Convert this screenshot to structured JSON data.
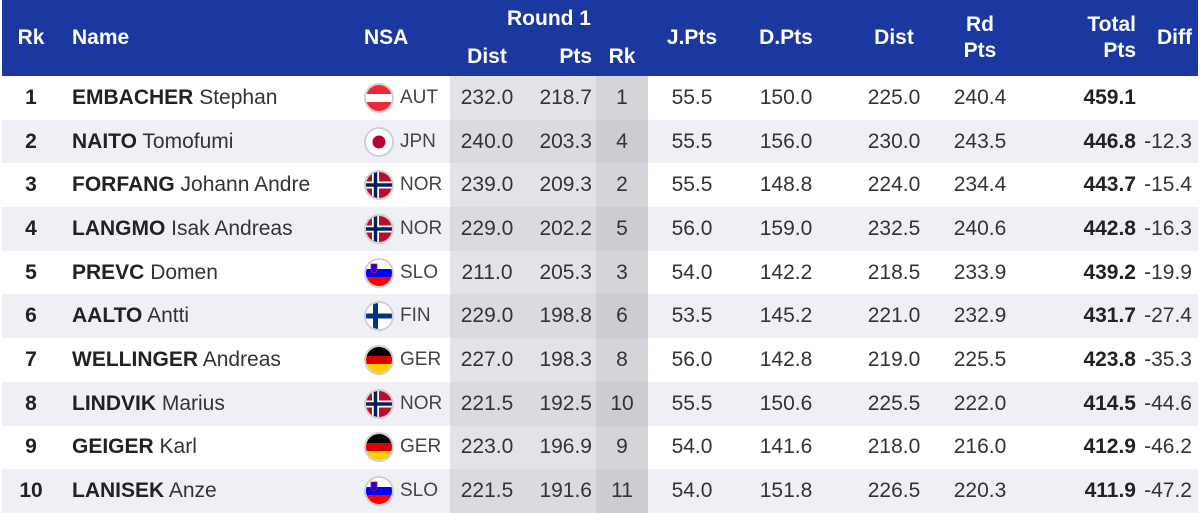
{
  "headers": {
    "rk": "Rk",
    "name": "Name",
    "nsa": "NSA",
    "round1": "Round 1",
    "r1_dist": "Dist",
    "r1_pts": "Pts",
    "r1_rk": "Rk",
    "jpts": "J.Pts",
    "dpts": "D.Pts",
    "dist": "Dist",
    "rdpts_1": "Rd",
    "rdpts_2": "Pts",
    "total_1": "Total",
    "total_2": "Pts",
    "diff": "Diff"
  },
  "rows": [
    {
      "rk": "1",
      "surname": "EMBACHER",
      "firstname": "Stephan",
      "flag": "aut-flag-icon",
      "nsa": "AUT",
      "r1_dist": "232.0",
      "r1_pts": "218.7",
      "r1_rk": "1",
      "jpts": "55.5",
      "dpts": "150.0",
      "dist": "225.0",
      "rdpts": "240.4",
      "total": "459.1",
      "diff": ""
    },
    {
      "rk": "2",
      "surname": "NAITO",
      "firstname": "Tomofumi",
      "flag": "jpn-flag-icon",
      "nsa": "JPN",
      "r1_dist": "240.0",
      "r1_pts": "203.3",
      "r1_rk": "4",
      "jpts": "55.5",
      "dpts": "156.0",
      "dist": "230.0",
      "rdpts": "243.5",
      "total": "446.8",
      "diff": "-12.3"
    },
    {
      "rk": "3",
      "surname": "FORFANG",
      "firstname": "Johann Andre",
      "flag": "nor-flag-icon",
      "nsa": "NOR",
      "r1_dist": "239.0",
      "r1_pts": "209.3",
      "r1_rk": "2",
      "jpts": "55.5",
      "dpts": "148.8",
      "dist": "224.0",
      "rdpts": "234.4",
      "total": "443.7",
      "diff": "-15.4"
    },
    {
      "rk": "4",
      "surname": "LANGMO",
      "firstname": "Isak Andreas",
      "flag": "nor-flag-icon",
      "nsa": "NOR",
      "r1_dist": "229.0",
      "r1_pts": "202.2",
      "r1_rk": "5",
      "jpts": "56.0",
      "dpts": "159.0",
      "dist": "232.5",
      "rdpts": "240.6",
      "total": "442.8",
      "diff": "-16.3"
    },
    {
      "rk": "5",
      "surname": "PREVC",
      "firstname": "Domen",
      "flag": "slo-flag-icon",
      "nsa": "SLO",
      "r1_dist": "211.0",
      "r1_pts": "205.3",
      "r1_rk": "3",
      "jpts": "54.0",
      "dpts": "142.2",
      "dist": "218.5",
      "rdpts": "233.9",
      "total": "439.2",
      "diff": "-19.9"
    },
    {
      "rk": "6",
      "surname": "AALTO",
      "firstname": "Antti",
      "flag": "fin-flag-icon",
      "nsa": "FIN",
      "r1_dist": "229.0",
      "r1_pts": "198.8",
      "r1_rk": "6",
      "jpts": "53.5",
      "dpts": "145.2",
      "dist": "221.0",
      "rdpts": "232.9",
      "total": "431.7",
      "diff": "-27.4"
    },
    {
      "rk": "7",
      "surname": "WELLINGER",
      "firstname": "Andreas",
      "flag": "ger-flag-icon",
      "nsa": "GER",
      "r1_dist": "227.0",
      "r1_pts": "198.3",
      "r1_rk": "8",
      "jpts": "56.0",
      "dpts": "142.8",
      "dist": "219.0",
      "rdpts": "225.5",
      "total": "423.8",
      "diff": "-35.3"
    },
    {
      "rk": "8",
      "surname": "LINDVIK",
      "firstname": "Marius",
      "flag": "nor-flag-icon",
      "nsa": "NOR",
      "r1_dist": "221.5",
      "r1_pts": "192.5",
      "r1_rk": "10",
      "jpts": "55.5",
      "dpts": "150.6",
      "dist": "225.5",
      "rdpts": "222.0",
      "total": "414.5",
      "diff": "-44.6"
    },
    {
      "rk": "9",
      "surname": "GEIGER",
      "firstname": "Karl",
      "flag": "ger-flag-icon",
      "nsa": "GER",
      "r1_dist": "223.0",
      "r1_pts": "196.9",
      "r1_rk": "9",
      "jpts": "54.0",
      "dpts": "141.6",
      "dist": "218.0",
      "rdpts": "216.0",
      "total": "412.9",
      "diff": "-46.2"
    },
    {
      "rk": "10",
      "surname": "LANISEK",
      "firstname": "Anze",
      "flag": "slo-flag-icon",
      "nsa": "SLO",
      "r1_dist": "221.5",
      "r1_pts": "191.6",
      "r1_rk": "11",
      "jpts": "54.0",
      "dpts": "151.8",
      "dist": "226.5",
      "rdpts": "220.3",
      "total": "411.9",
      "diff": "-47.2"
    }
  ],
  "colors": {
    "header_bg": "#1a38a0",
    "header_text": "#ffffff",
    "row_alt": "#eef0f5",
    "round1_bg": "#e2e3e6"
  }
}
